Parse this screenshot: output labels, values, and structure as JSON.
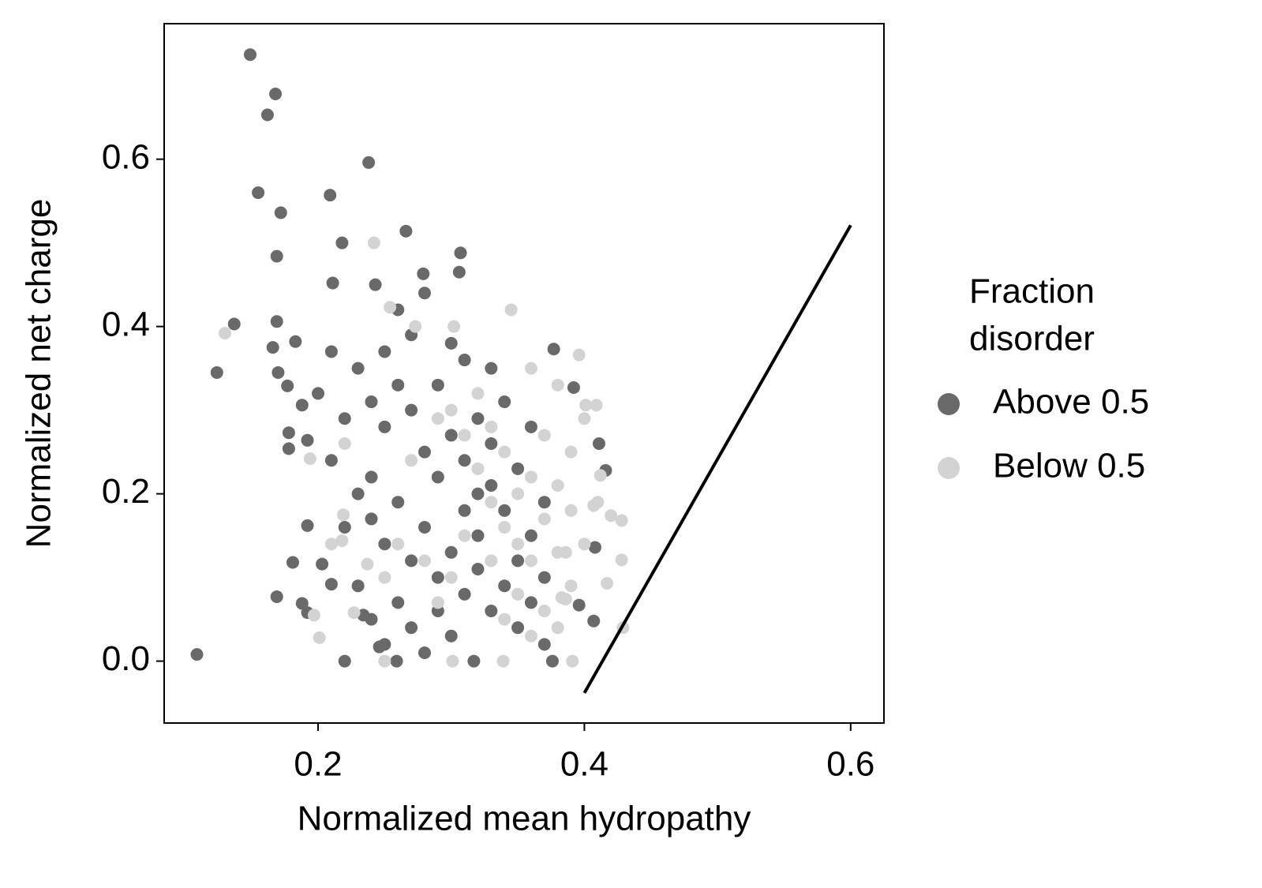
{
  "chart_data": {
    "type": "scatter",
    "xlabel": "Normalized mean hydropathy",
    "ylabel": "Normalized net charge",
    "legend_title": [
      "Fraction",
      "disorder"
    ],
    "legend_position": "right",
    "xlim": [
      0.0844,
      0.625
    ],
    "ylim": [
      -0.074,
      0.762
    ],
    "xticks": [
      0.2,
      0.4,
      0.6
    ],
    "yticks": [
      {
        "value": 0,
        "label": "0.0"
      },
      0.2,
      0.4,
      0.6
    ],
    "series": [
      {
        "name": "Above 0.5",
        "color": "#696969",
        "x": [
          0.149,
          0.168,
          0.162,
          0.155,
          0.238,
          0.209,
          0.172,
          0.266,
          0.218,
          0.169,
          0.307,
          0.306,
          0.279,
          0.211,
          0.243,
          0.137,
          0.124,
          0.109,
          0.169,
          0.166,
          0.183,
          0.17,
          0.177,
          0.188,
          0.178,
          0.178,
          0.192,
          0.192,
          0.181,
          0.169,
          0.188,
          0.192,
          0.392,
          0.411,
          0.416,
          0.408,
          0.407,
          0.396,
          0.377,
          0.22,
          0.259,
          0.317,
          0.376,
          0.203,
          0.21,
          0.234,
          0.246,
          0.23,
          0.24,
          0.25,
          0.26,
          0.27,
          0.28,
          0.29,
          0.3,
          0.31,
          0.32,
          0.33,
          0.34,
          0.35,
          0.36,
          0.37,
          0.23,
          0.24,
          0.25,
          0.26,
          0.27,
          0.28,
          0.29,
          0.3,
          0.31,
          0.32,
          0.33,
          0.34,
          0.35,
          0.36,
          0.37,
          0.22,
          0.23,
          0.24,
          0.25,
          0.26,
          0.27,
          0.28,
          0.29,
          0.3,
          0.31,
          0.32,
          0.33,
          0.34,
          0.31,
          0.3,
          0.29,
          0.28,
          0.27,
          0.26,
          0.25,
          0.24,
          0.22,
          0.21,
          0.2,
          0.21,
          0.32,
          0.35,
          0.36,
          0.37,
          0.33
        ],
        "values": [
          0.725,
          0.678,
          0.653,
          0.56,
          0.596,
          0.557,
          0.536,
          0.514,
          0.5,
          0.484,
          0.488,
          0.465,
          0.463,
          0.452,
          0.45,
          0.403,
          0.345,
          0.008,
          0.406,
          0.375,
          0.382,
          0.345,
          0.329,
          0.306,
          0.273,
          0.254,
          0.264,
          0.162,
          0.118,
          0.077,
          0.069,
          0.058,
          0.327,
          0.26,
          0.228,
          0.136,
          0.048,
          0.067,
          0.373,
          0,
          0,
          0,
          0,
          0.116,
          0.092,
          0.055,
          0.017,
          0.35,
          0.31,
          0.28,
          0.33,
          0.3,
          0.25,
          0.22,
          0.27,
          0.24,
          0.29,
          0.21,
          0.18,
          0.23,
          0.15,
          0.19,
          0.2,
          0.17,
          0.14,
          0.19,
          0.12,
          0.16,
          0.1,
          0.13,
          0.08,
          0.11,
          0.06,
          0.09,
          0.04,
          0.07,
          0.02,
          0.29,
          0.09,
          0.05,
          0.02,
          0.07,
          0.04,
          0.01,
          0.06,
          0.03,
          0.18,
          0.2,
          0.26,
          0.31,
          0.36,
          0.38,
          0.33,
          0.44,
          0.39,
          0.42,
          0.37,
          0.22,
          0.16,
          0.24,
          0.32,
          0.37,
          0.15,
          0.12,
          0.28,
          0.1,
          0.35
        ]
      },
      {
        "name": "Below 0.5",
        "color": "#d3d3d3",
        "x": [
          0.242,
          0.13,
          0.194,
          0.201,
          0.197,
          0.396,
          0.429,
          0.428,
          0.428,
          0.417,
          0.42,
          0.409,
          0.401,
          0.391,
          0.345,
          0.254,
          0.273,
          0.302,
          0.339,
          0.25,
          0.301,
          0.219,
          0.218,
          0.237,
          0.227,
          0.412,
          0.407,
          0.386,
          0.386,
          0.383,
          0.3,
          0.31,
          0.32,
          0.33,
          0.34,
          0.35,
          0.36,
          0.37,
          0.38,
          0.39,
          0.4,
          0.38,
          0.39,
          0.37,
          0.36,
          0.35,
          0.34,
          0.33,
          0.32,
          0.31,
          0.3,
          0.29,
          0.28,
          0.27,
          0.26,
          0.35,
          0.36,
          0.37,
          0.38,
          0.39,
          0.4,
          0.41,
          0.29,
          0.34,
          0.38,
          0.25,
          0.22,
          0.21,
          0.33,
          0.36
        ],
        "values": [
          0.5,
          0.392,
          0.242,
          0.028,
          0.055,
          0.366,
          0.04,
          0.168,
          0.121,
          0.093,
          0.174,
          0.306,
          0.306,
          0,
          0.42,
          0.423,
          0.4,
          0.4,
          0,
          0,
          0,
          0.175,
          0.144,
          0.116,
          0.058,
          0.222,
          0.186,
          0.13,
          0.074,
          0.076,
          0.3,
          0.27,
          0.23,
          0.19,
          0.16,
          0.14,
          0.12,
          0.17,
          0.21,
          0.25,
          0.29,
          0.13,
          0.09,
          0.06,
          0.03,
          0.08,
          0.25,
          0.28,
          0.32,
          0.15,
          0.1,
          0.07,
          0.12,
          0.24,
          0.14,
          0.2,
          0.22,
          0.27,
          0.33,
          0.18,
          0.14,
          0.19,
          0.29,
          0.05,
          0.04,
          0.1,
          0.26,
          0.14,
          0.12,
          0.35
        ]
      }
    ],
    "line": {
      "color": "#000000",
      "x": [
        0.4,
        0.6
      ],
      "values": [
        -0.038,
        0.521
      ]
    }
  }
}
